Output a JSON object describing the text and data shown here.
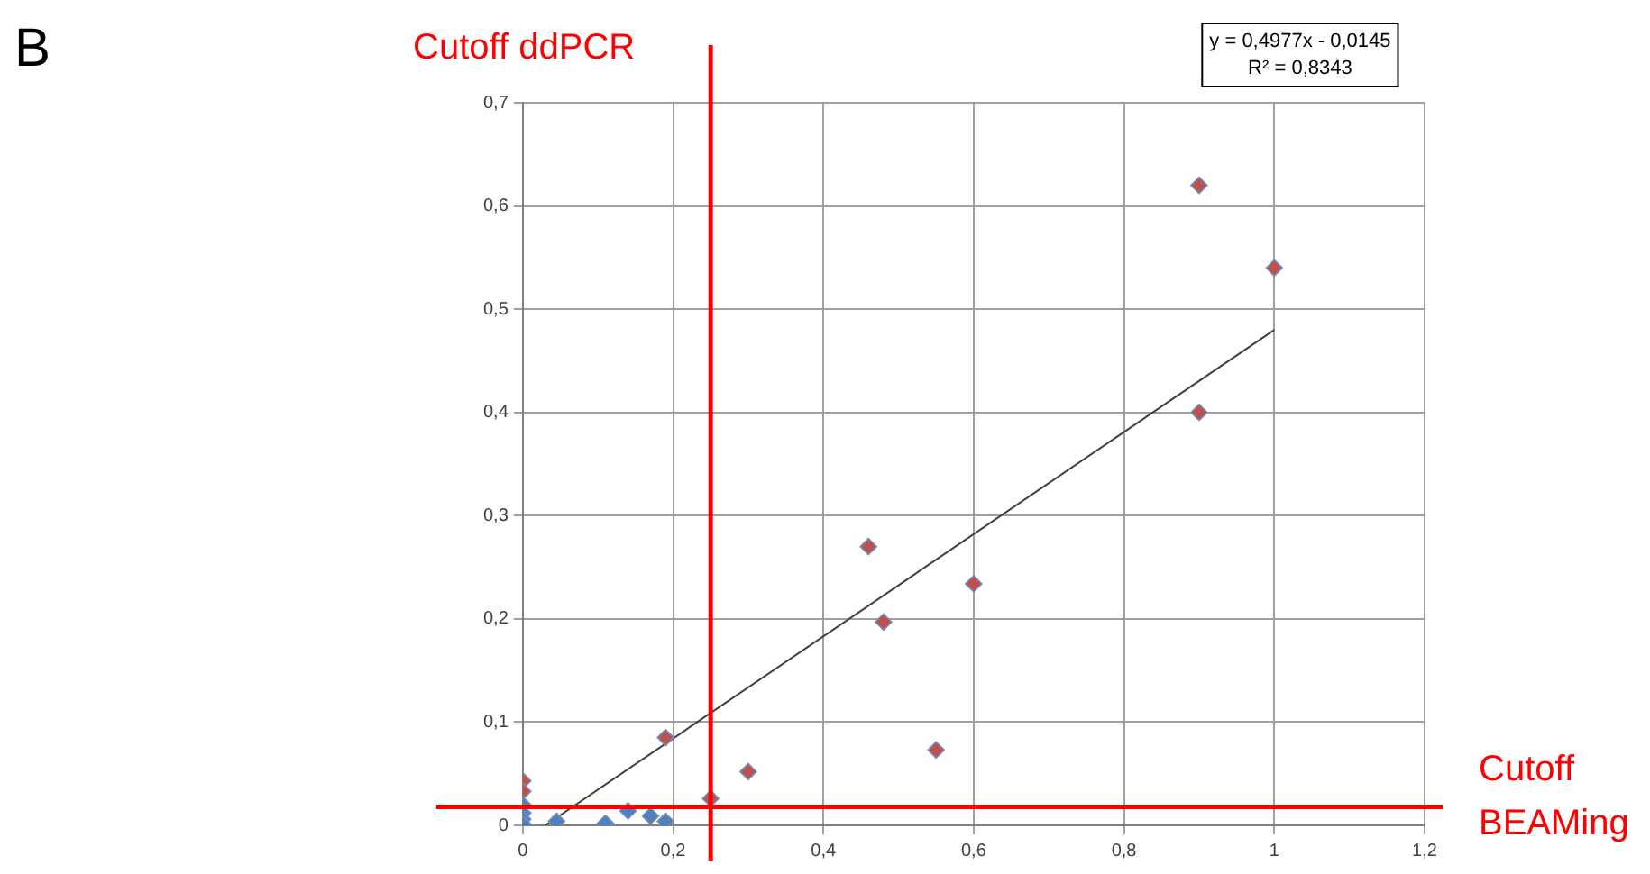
{
  "chart_data": {
    "type": "scatter",
    "grid": true,
    "xlim": [
      0,
      1.2
    ],
    "xticks": [
      0,
      {
        "value": 0.2,
        "label": "0,2"
      },
      {
        "value": 0.4,
        "label": "0,4"
      },
      {
        "value": 0.6,
        "label": "0,6"
      },
      {
        "value": 0.8,
        "label": "0,8"
      },
      {
        "value": 1,
        "label": "1"
      },
      {
        "value": 1.2,
        "label": "1,2"
      }
    ],
    "ylim": [
      0,
      0.7
    ],
    "yticks": [
      0,
      {
        "value": 0.1,
        "label": "0,1"
      },
      {
        "value": 0.2,
        "label": "0,2"
      },
      {
        "value": 0.3,
        "label": "0,3"
      },
      {
        "value": 0.4,
        "label": "0,4"
      },
      {
        "value": 0.5,
        "label": "0,5"
      },
      {
        "value": 0.6,
        "label": "0,6"
      },
      {
        "value": 0.7,
        "label": "0,7"
      }
    ],
    "series": [
      {
        "marker": "diamond",
        "x": [
          0,
          0,
          0.19,
          0.25,
          0.3,
          0.46,
          0.48,
          0.6,
          0.55,
          0.9,
          1,
          0.9,
          0,
          0,
          0,
          0,
          0.045,
          0.11,
          0.14,
          0.17,
          0.19
        ],
        "values": [
          0.043,
          0.033,
          0.085,
          0.026,
          0.052,
          0.27,
          0.197,
          0.234,
          0.073,
          0.62,
          0.54,
          0.4,
          0.02,
          0.012,
          0.006,
          0.001,
          0.004,
          0.002,
          0.014,
          0.009,
          0.004
        ],
        "colors": [
          "#c0504d",
          "#c0504d",
          "#c0504d",
          "#c0504d",
          "#c0504d",
          "#c0504d",
          "#c0504d",
          "#c0504d",
          "#c0504d",
          "#c0504d",
          "#c0504d",
          "#c0504d",
          "#4f81bd",
          "#4f81bd",
          "#4f81bd",
          "#4f81bd",
          "#4f81bd",
          "#4f81bd",
          "#4f81bd",
          "#4f81bd",
          "#4f81bd"
        ]
      },
      {
        "type": "line",
        "x": [
          0.03,
          1
        ],
        "values": [
          0,
          0.48
        ],
        "color": "#404040"
      }
    ],
    "ref_lines": [
      {
        "axis": "x",
        "value": 0.25,
        "label": "Cutoff ddPCR",
        "color": "#ff0000"
      },
      {
        "axis": "y",
        "value": 0.018,
        "label": "Cutoff BEAMing",
        "color": "#ff0000"
      }
    ],
    "annotations": [
      "B",
      "y = 0,4977x - 0,0145",
      "R² = 0,8343"
    ]
  }
}
